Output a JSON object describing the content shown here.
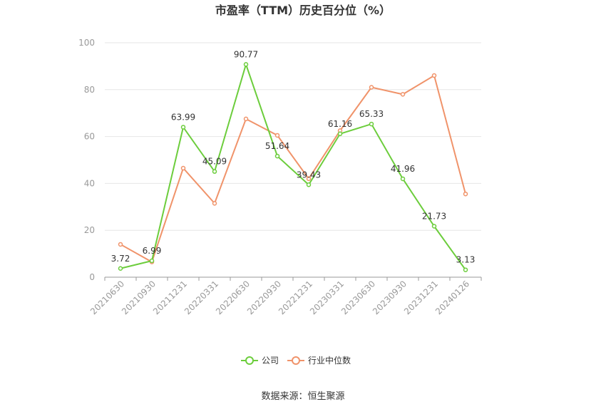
{
  "chart_data": {
    "type": "line",
    "title": "市盈率（TTM）历史百分位（%）",
    "categories": [
      "20210630",
      "20210930",
      "20211231",
      "20220331",
      "20220630",
      "20220930",
      "20221231",
      "20230331",
      "20230630",
      "20230930",
      "20231231",
      "20240126"
    ],
    "ylim": [
      0,
      100
    ],
    "yticks": [
      0,
      20,
      40,
      60,
      80,
      100
    ],
    "grid": true,
    "legend_position": "bottom",
    "series": [
      {
        "name": "公司",
        "color": "#6ccd3c",
        "values": [
          3.72,
          6.99,
          63.99,
          45.09,
          90.77,
          51.64,
          39.43,
          61.16,
          65.33,
          41.96,
          21.73,
          3.13
        ],
        "labels": [
          "3.72",
          "6.99",
          "63.99",
          "45.09",
          "90.77",
          "51.64",
          "39.43",
          "61.16",
          "65.33",
          "41.96",
          "21.73",
          "3.13"
        ]
      },
      {
        "name": "行业中位数",
        "color": "#f0936a",
        "values": [
          14.0,
          6.5,
          46.5,
          31.5,
          67.5,
          60.5,
          42.0,
          62.5,
          81.0,
          78.0,
          86.0,
          35.5
        ]
      }
    ]
  },
  "source": "数据来源：恒生聚源"
}
